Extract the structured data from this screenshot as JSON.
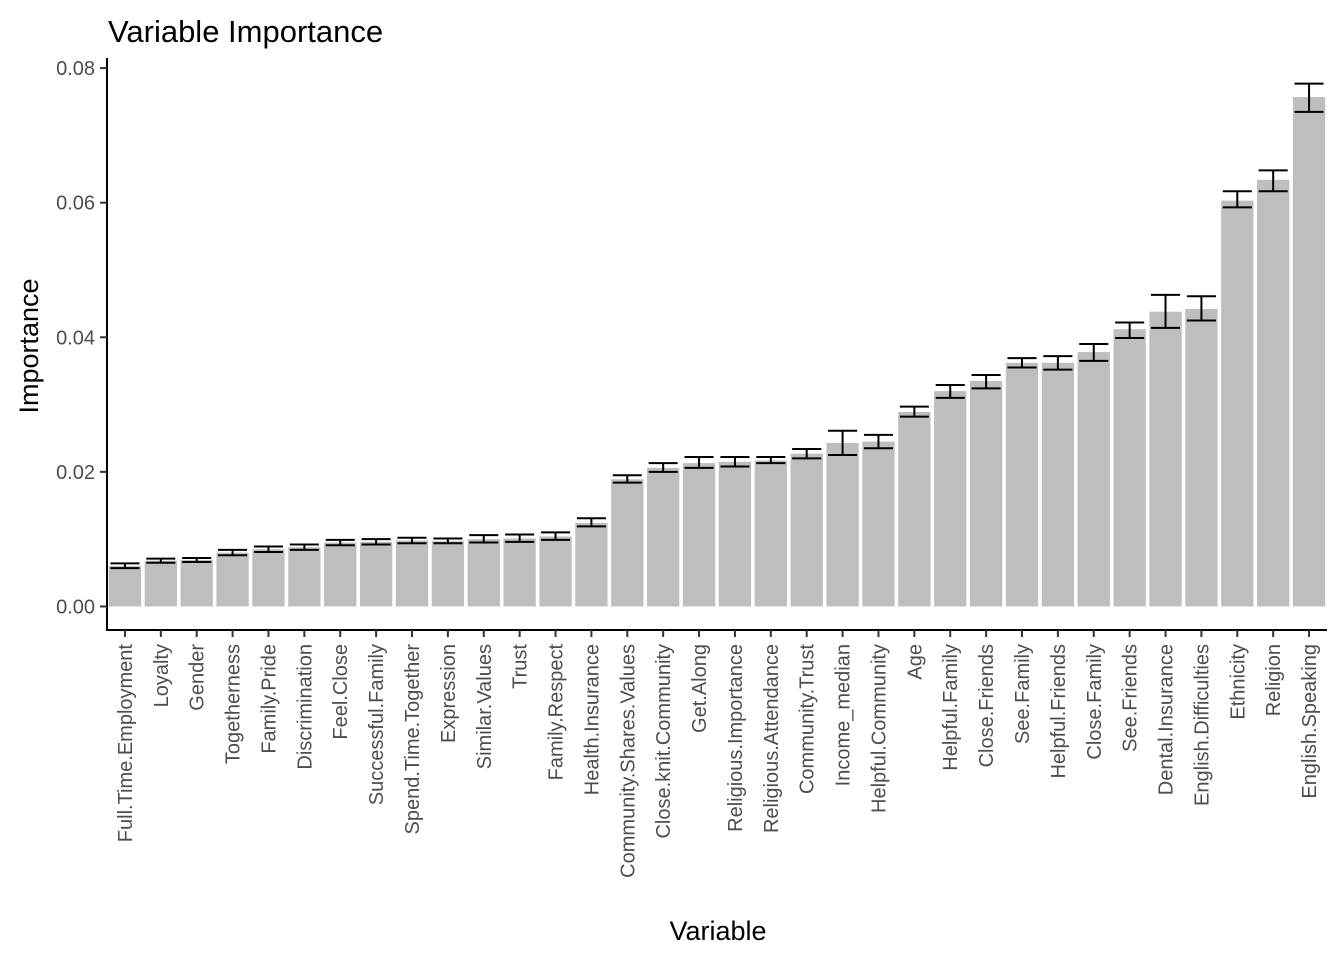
{
  "chart_data": {
    "type": "bar",
    "title": "Variable Importance",
    "xlabel": "Variable",
    "ylabel": "Importance",
    "ylim": [
      -0.0035,
      0.0815
    ],
    "yticks": [
      0.0,
      0.02,
      0.04,
      0.06,
      0.08
    ],
    "ytick_labels": [
      "0.00",
      "0.02",
      "0.04",
      "0.06",
      "0.08"
    ],
    "grid": false,
    "legend": "none",
    "bar_color": "#bebebe",
    "errorbar_color": "#000000",
    "categories": [
      "Full.Time.Employment",
      "Loyalty",
      "Gender",
      "Togetherness",
      "Family.Pride",
      "Discrimination",
      "Feel.Close",
      "Successful.Family",
      "Spend.Time.Together",
      "Expression",
      "Similar.Values",
      "Trust",
      "Family.Respect",
      "Health.Insurance",
      "Community.Shares.Values",
      "Close.knit.Community",
      "Get.Along",
      "Religious.Importance",
      "Religious.Attendance",
      "Community.Trust",
      "Income_median",
      "Helpful.Community",
      "Age",
      "Helpful.Family",
      "Close.Friends",
      "See.Family",
      "Helpful.Friends",
      "Close.Family",
      "See.Friends",
      "Dental.Insurance",
      "English.Difficulties",
      "Ethnicity",
      "Religion",
      "English.Speaking"
    ],
    "values": [
      0.006,
      0.0068,
      0.0069,
      0.008,
      0.0085,
      0.0088,
      0.0095,
      0.0096,
      0.0098,
      0.0097,
      0.01,
      0.0101,
      0.0104,
      0.0124,
      0.0189,
      0.0206,
      0.0213,
      0.0215,
      0.0217,
      0.0227,
      0.0243,
      0.0245,
      0.0289,
      0.032,
      0.0335,
      0.0362,
      0.0362,
      0.0378,
      0.0412,
      0.0438,
      0.0442,
      0.0603,
      0.0634,
      0.0757
    ],
    "error_low": [
      0.0057,
      0.0065,
      0.0066,
      0.0076,
      0.0081,
      0.0084,
      0.0091,
      0.0092,
      0.0094,
      0.0094,
      0.0095,
      0.0096,
      0.0099,
      0.0119,
      0.0184,
      0.02,
      0.0206,
      0.0208,
      0.0213,
      0.022,
      0.0225,
      0.0235,
      0.0282,
      0.031,
      0.0324,
      0.0355,
      0.0352,
      0.0365,
      0.0399,
      0.0414,
      0.0425,
      0.0593,
      0.0617,
      0.0735
    ],
    "error_high": [
      0.0064,
      0.0071,
      0.0072,
      0.0084,
      0.0089,
      0.0092,
      0.0099,
      0.01,
      0.0102,
      0.0101,
      0.0106,
      0.0107,
      0.011,
      0.0131,
      0.0195,
      0.0213,
      0.0222,
      0.0222,
      0.0222,
      0.0234,
      0.0261,
      0.0255,
      0.0297,
      0.0329,
      0.0344,
      0.0369,
      0.0372,
      0.039,
      0.0422,
      0.0463,
      0.0461,
      0.0617,
      0.0648,
      0.0777
    ]
  }
}
